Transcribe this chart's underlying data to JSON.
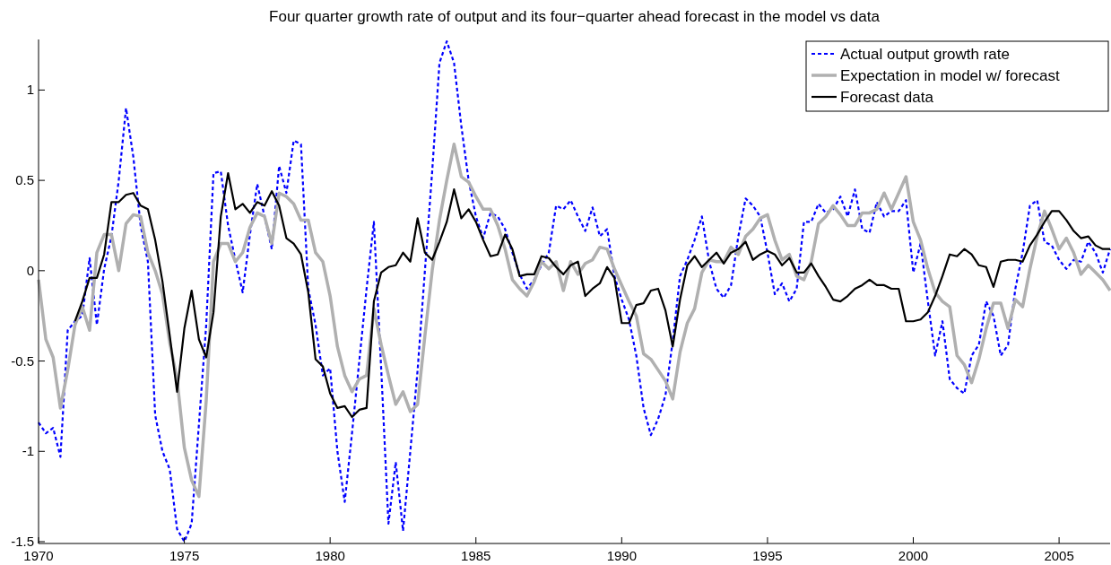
{
  "chart_data": {
    "type": "line",
    "title": "Four quarter growth rate of output and its four−quarter ahead forecast in the model vs data",
    "x": [
      1970,
      1970.25,
      1970.5,
      1970.75,
      1971,
      1971.25,
      1971.5,
      1971.75,
      1972,
      1972.25,
      1972.5,
      1972.75,
      1973,
      1973.25,
      1973.5,
      1973.75,
      1974,
      1974.25,
      1974.5,
      1974.75,
      1975,
      1975.25,
      1975.5,
      1975.75,
      1976,
      1976.25,
      1976.5,
      1976.75,
      1977,
      1977.25,
      1977.5,
      1977.75,
      1978,
      1978.25,
      1978.5,
      1978.75,
      1979,
      1979.25,
      1979.5,
      1979.75,
      1980,
      1980.25,
      1980.5,
      1980.75,
      1981,
      1981.25,
      1981.5,
      1981.75,
      1982,
      1982.25,
      1982.5,
      1982.75,
      1983,
      1983.25,
      1983.5,
      1983.75,
      1984,
      1984.25,
      1984.5,
      1984.75,
      1985,
      1985.25,
      1985.5,
      1985.75,
      1986,
      1986.25,
      1986.5,
      1986.75,
      1987,
      1987.25,
      1987.5,
      1987.75,
      1988,
      1988.25,
      1988.5,
      1988.75,
      1989,
      1989.25,
      1989.5,
      1989.75,
      1990,
      1990.25,
      1990.5,
      1990.75,
      1991,
      1991.25,
      1991.5,
      1991.75,
      1992,
      1992.25,
      1992.5,
      1992.75,
      1993,
      1993.25,
      1993.5,
      1993.75,
      1994,
      1994.25,
      1994.5,
      1994.75,
      1995,
      1995.25,
      1995.5,
      1995.75,
      1996,
      1996.25,
      1996.5,
      1996.75,
      1997,
      1997.25,
      1997.5,
      1997.75,
      1998,
      1998.25,
      1998.5,
      1998.75,
      1999,
      1999.25,
      1999.5,
      1999.75,
      2000,
      2000.25,
      2000.5,
      2000.75,
      2001,
      2001.25,
      2001.5,
      2001.75,
      2002,
      2002.25,
      2002.5,
      2002.75,
      2003,
      2003.25,
      2003.5,
      2003.75,
      2004,
      2004.25,
      2004.5,
      2004.75,
      2005,
      2005.25,
      2005.5,
      2005.75,
      2006,
      2006.25,
      2006.5,
      2006.75
    ],
    "series": [
      {
        "name": "Actual output growth rate",
        "color": "#0000ff",
        "line_style": "dotted",
        "values": [
          -0.84,
          -0.9,
          -0.87,
          -1.03,
          -0.33,
          -0.28,
          -0.25,
          0.07,
          -0.3,
          0.01,
          0.19,
          0.5,
          0.9,
          0.63,
          0.25,
          0.05,
          -0.8,
          -1.0,
          -1.1,
          -1.43,
          -1.5,
          -1.4,
          -0.85,
          -0.3,
          0.54,
          0.55,
          0.25,
          0.06,
          -0.12,
          0.2,
          0.48,
          0.3,
          0.12,
          0.58,
          0.43,
          0.72,
          0.7,
          -0.1,
          -0.3,
          -0.58,
          -0.54,
          -1.0,
          -1.28,
          -0.9,
          -0.5,
          -0.1,
          0.27,
          -0.54,
          -1.4,
          -1.06,
          -1.44,
          -1.0,
          -0.55,
          0.0,
          0.55,
          1.15,
          1.27,
          1.15,
          0.8,
          0.5,
          0.3,
          0.18,
          0.32,
          0.3,
          0.23,
          0.1,
          -0.02,
          -0.1,
          -0.05,
          0.03,
          0.1,
          0.36,
          0.34,
          0.39,
          0.3,
          0.22,
          0.35,
          0.19,
          0.23,
          -0.03,
          -0.16,
          -0.27,
          -0.47,
          -0.76,
          -0.91,
          -0.82,
          -0.69,
          -0.39,
          -0.03,
          0.06,
          0.17,
          0.3,
          0.05,
          -0.1,
          -0.15,
          -0.08,
          0.19,
          0.4,
          0.36,
          0.3,
          0.1,
          -0.13,
          -0.07,
          -0.17,
          -0.1,
          0.27,
          0.27,
          0.37,
          0.32,
          0.34,
          0.41,
          0.3,
          0.45,
          0.23,
          0.21,
          0.38,
          0.3,
          0.33,
          0.33,
          0.39,
          -0.01,
          0.15,
          -0.17,
          -0.47,
          -0.28,
          -0.6,
          -0.65,
          -0.68,
          -0.47,
          -0.41,
          -0.17,
          -0.25,
          -0.47,
          -0.41,
          -0.1,
          0.1,
          0.36,
          0.39,
          0.16,
          0.14,
          0.06,
          0.01,
          0.06,
          0.05,
          0.16,
          0.1,
          -0.01,
          0.12
        ]
      },
      {
        "name": "Expectation in model w/ forecast",
        "color": "#b0b0b0",
        "line_style": "solid",
        "values": [
          -0.05,
          -0.38,
          -0.48,
          -0.76,
          -0.55,
          -0.3,
          -0.2,
          -0.33,
          0.1,
          0.2,
          0.2,
          0.0,
          0.26,
          0.31,
          0.3,
          0.1,
          0.0,
          -0.13,
          -0.4,
          -0.6,
          -0.98,
          -1.16,
          -1.25,
          -0.72,
          0.05,
          0.15,
          0.15,
          0.05,
          0.1,
          0.24,
          0.32,
          0.3,
          0.15,
          0.43,
          0.41,
          0.37,
          0.28,
          0.28,
          0.1,
          0.05,
          -0.14,
          -0.42,
          -0.58,
          -0.67,
          -0.6,
          -0.58,
          -0.21,
          -0.41,
          -0.58,
          -0.74,
          -0.67,
          -0.78,
          -0.74,
          -0.36,
          0.0,
          0.28,
          0.5,
          0.7,
          0.52,
          0.49,
          0.41,
          0.34,
          0.34,
          0.25,
          0.12,
          -0.05,
          -0.1,
          -0.14,
          -0.06,
          0.05,
          0.01,
          0.05,
          -0.11,
          0.05,
          -0.02,
          0.04,
          0.06,
          0.13,
          0.12,
          0.01,
          -0.08,
          -0.17,
          -0.25,
          -0.46,
          -0.49,
          -0.55,
          -0.61,
          -0.71,
          -0.45,
          -0.29,
          -0.21,
          -0.01,
          0.06,
          0.05,
          0.05,
          0.13,
          0.09,
          0.19,
          0.23,
          0.29,
          0.31,
          0.17,
          0.06,
          0.09,
          -0.03,
          -0.05,
          0.05,
          0.26,
          0.3,
          0.36,
          0.31,
          0.25,
          0.25,
          0.32,
          0.32,
          0.34,
          0.43,
          0.34,
          0.43,
          0.52,
          0.27,
          0.17,
          0.01,
          -0.12,
          -0.17,
          -0.2,
          -0.47,
          -0.52,
          -0.62,
          -0.49,
          -0.32,
          -0.18,
          -0.18,
          -0.32,
          -0.16,
          -0.2,
          0.01,
          0.19,
          0.33,
          0.23,
          0.12,
          0.18,
          0.1,
          -0.02,
          0.03,
          -0.01,
          -0.05,
          -0.11
        ]
      },
      {
        "name": "Forecast data",
        "color": "#000000",
        "line_style": "solid",
        "values": [
          null,
          null,
          null,
          null,
          null,
          -0.28,
          -0.17,
          -0.04,
          -0.04,
          0.09,
          0.38,
          0.38,
          0.42,
          0.43,
          0.36,
          0.34,
          0.17,
          -0.06,
          -0.36,
          -0.67,
          -0.32,
          -0.11,
          -0.38,
          -0.48,
          -0.23,
          0.3,
          0.54,
          0.34,
          0.37,
          0.32,
          0.38,
          0.36,
          0.44,
          0.36,
          0.18,
          0.15,
          0.09,
          -0.12,
          -0.49,
          -0.53,
          -0.68,
          -0.76,
          -0.75,
          -0.81,
          -0.77,
          -0.76,
          -0.17,
          -0.01,
          0.02,
          0.03,
          0.1,
          0.05,
          0.29,
          0.1,
          0.06,
          0.16,
          0.27,
          0.45,
          0.29,
          0.34,
          0.27,
          0.17,
          0.08,
          0.09,
          0.2,
          0.12,
          -0.03,
          -0.02,
          -0.02,
          0.08,
          0.07,
          0.02,
          -0.02,
          0.03,
          0.05,
          -0.14,
          -0.1,
          -0.07,
          0.02,
          -0.04,
          -0.29,
          -0.29,
          -0.19,
          -0.18,
          -0.11,
          -0.1,
          -0.22,
          -0.42,
          -0.16,
          0.03,
          0.08,
          0.02,
          0.06,
          0.1,
          0.04,
          0.1,
          0.12,
          0.16,
          0.06,
          0.09,
          0.11,
          0.09,
          0.03,
          0.07,
          -0.01,
          -0.01,
          0.04,
          -0.03,
          -0.09,
          -0.16,
          -0.17,
          -0.14,
          -0.1,
          -0.08,
          -0.05,
          -0.08,
          -0.08,
          -0.1,
          -0.1,
          -0.28,
          -0.28,
          -0.27,
          -0.23,
          -0.14,
          -0.03,
          0.09,
          0.08,
          0.12,
          0.09,
          0.03,
          0.02,
          -0.09,
          0.05,
          0.06,
          0.06,
          0.05,
          0.14,
          0.2,
          0.27,
          0.33,
          0.33,
          0.28,
          0.22,
          0.18,
          0.19,
          0.14,
          0.12,
          0.12
        ]
      }
    ],
    "xlim": [
      1970,
      2006.75
    ],
    "xticks": [
      1970,
      1975,
      1980,
      1985,
      1990,
      1995,
      2000,
      2005
    ],
    "ylim": [
      -1.51,
      1.28
    ],
    "yticks": [
      -1.5,
      -1,
      -0.5,
      0,
      0.5,
      1
    ],
    "grid": false,
    "legend": "top right",
    "marker": "none"
  }
}
